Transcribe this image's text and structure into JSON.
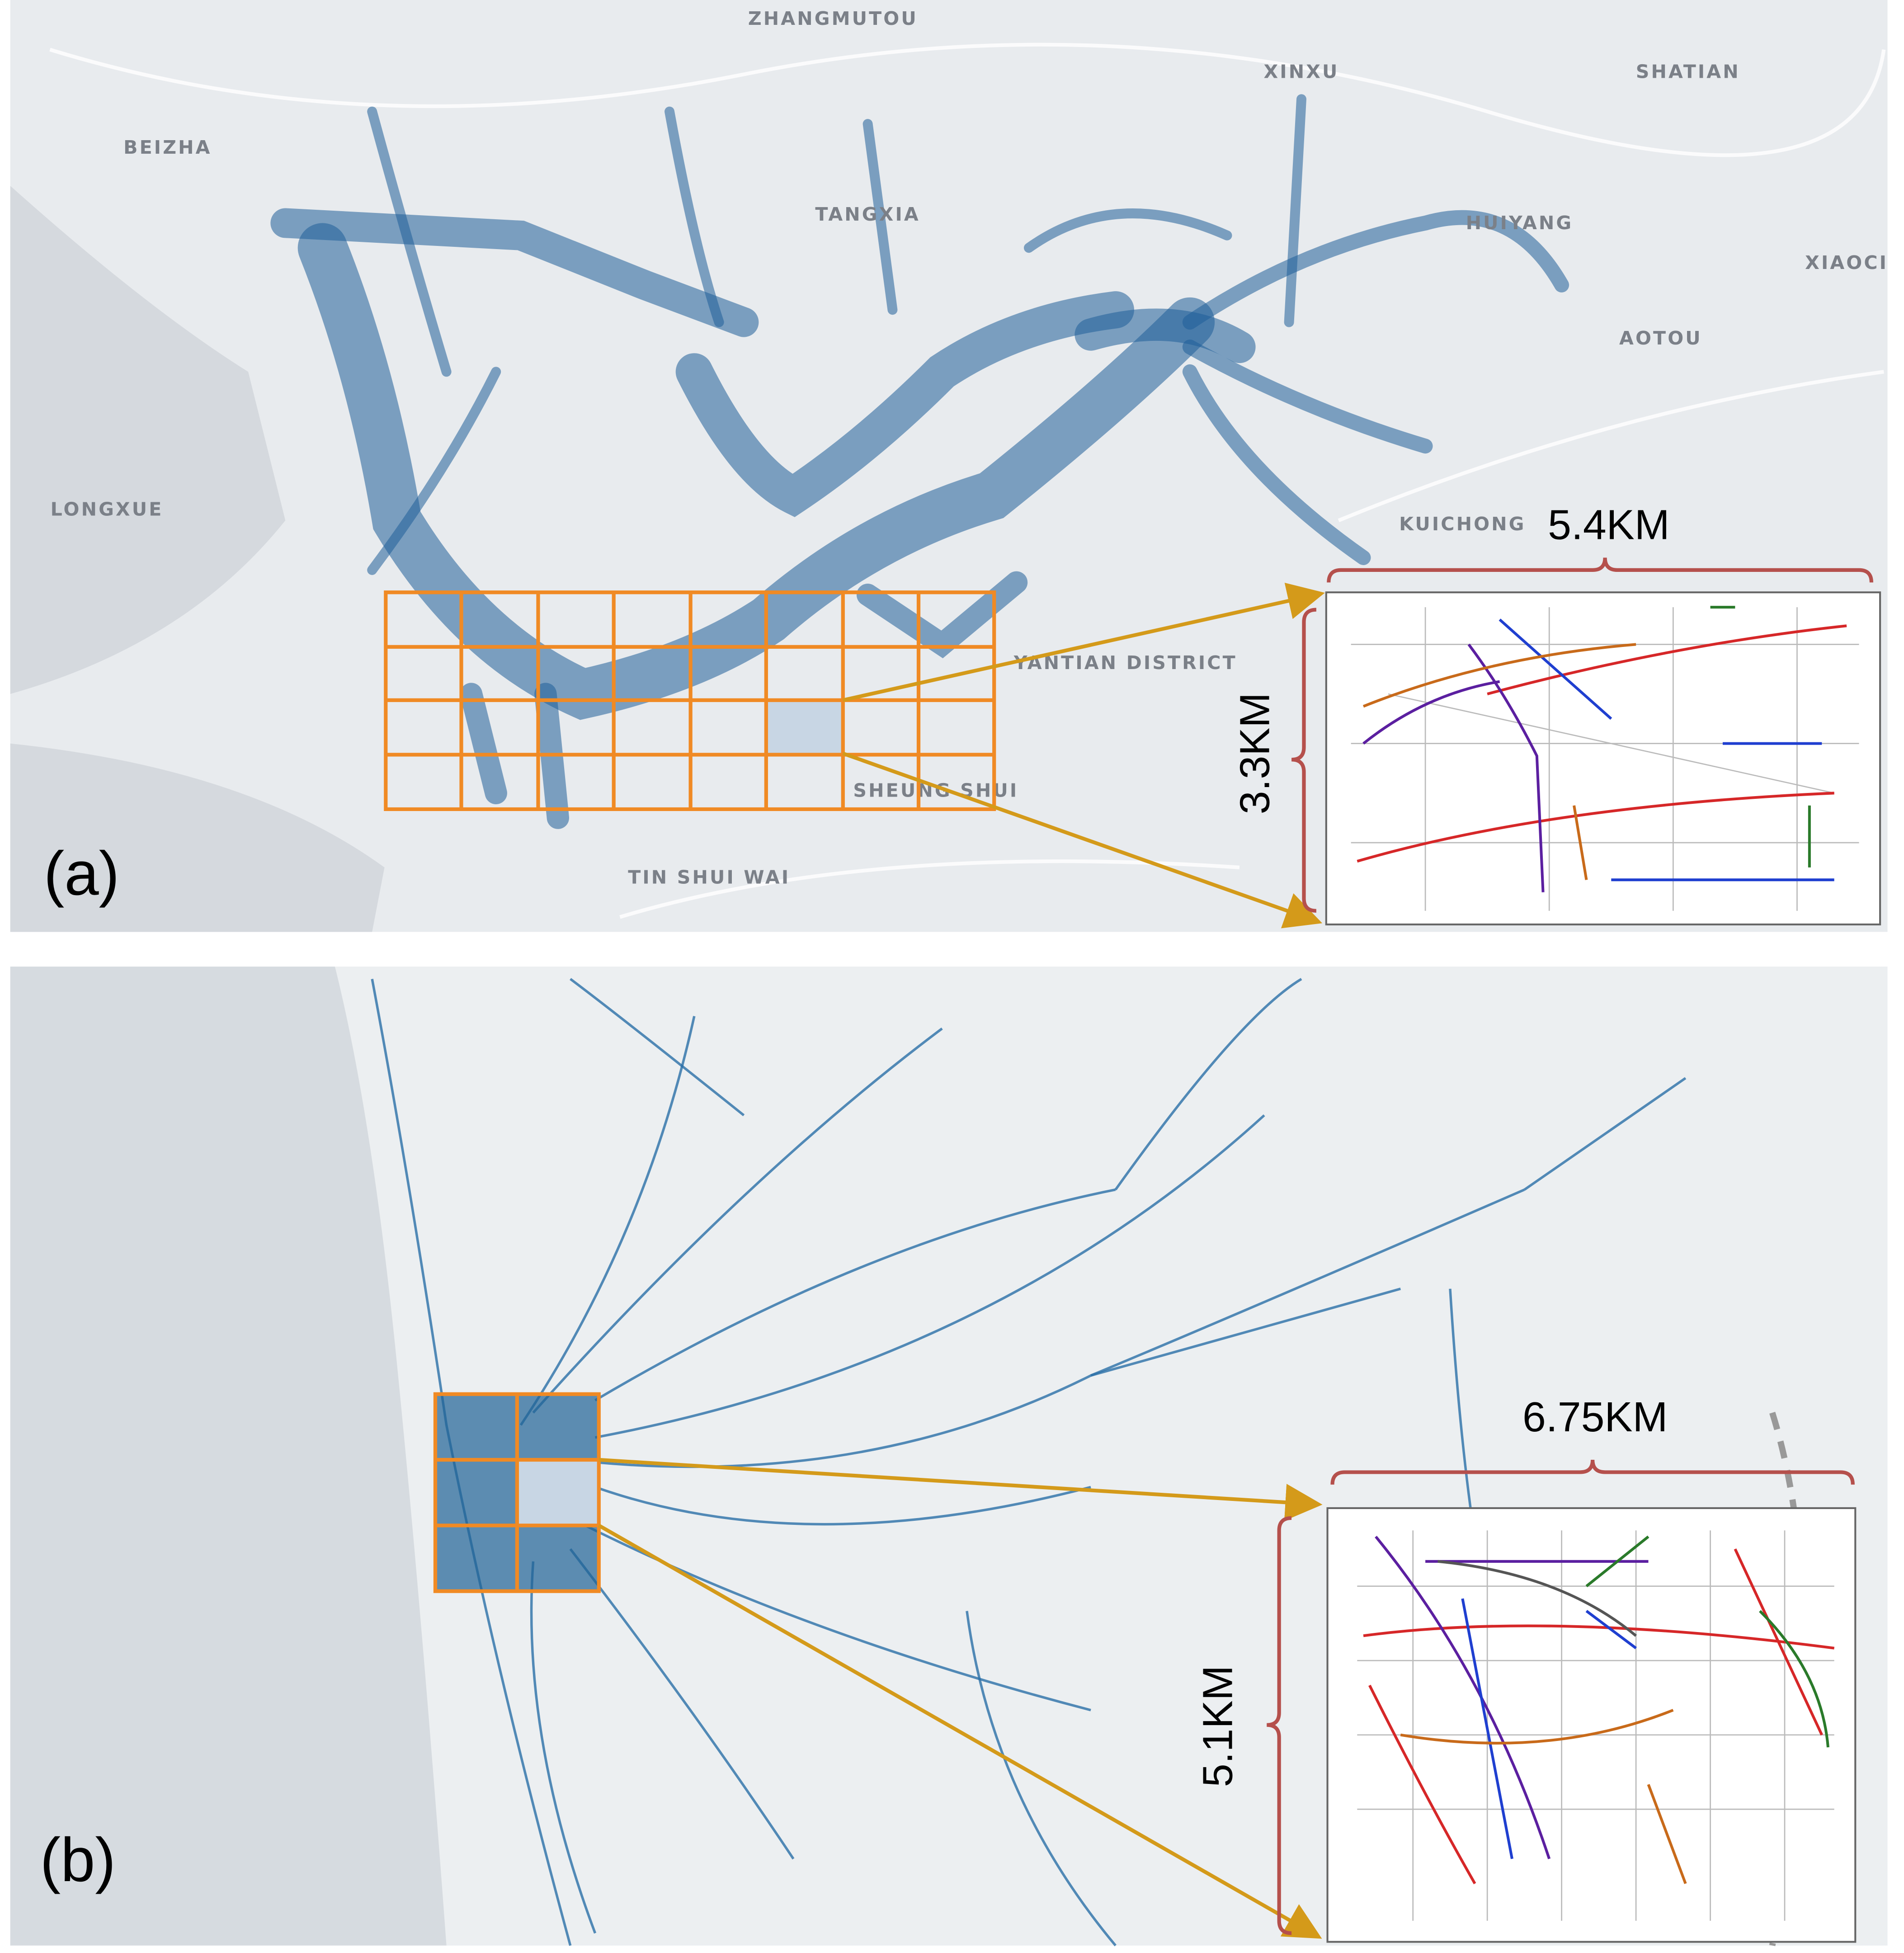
{
  "panels": [
    {
      "label": "(a)",
      "place_names": [
        "ZHANGMUTOU",
        "XINXU",
        "SHATIAN",
        "BEIZHA",
        "TANGXIA",
        "HUIYANG",
        "XIAOCI",
        "AOTOU",
        "LONGXUE",
        "KUICHONG",
        "YANTIAN DISTRICT",
        "SHEUNG SHUI",
        "TIN SHUI WAI"
      ],
      "width_label": "5.4KM",
      "height_label": "3.3KM"
    },
    {
      "label": "(b)",
      "width_label": "6.75KM",
      "height_label": "5.1KM"
    }
  ]
}
